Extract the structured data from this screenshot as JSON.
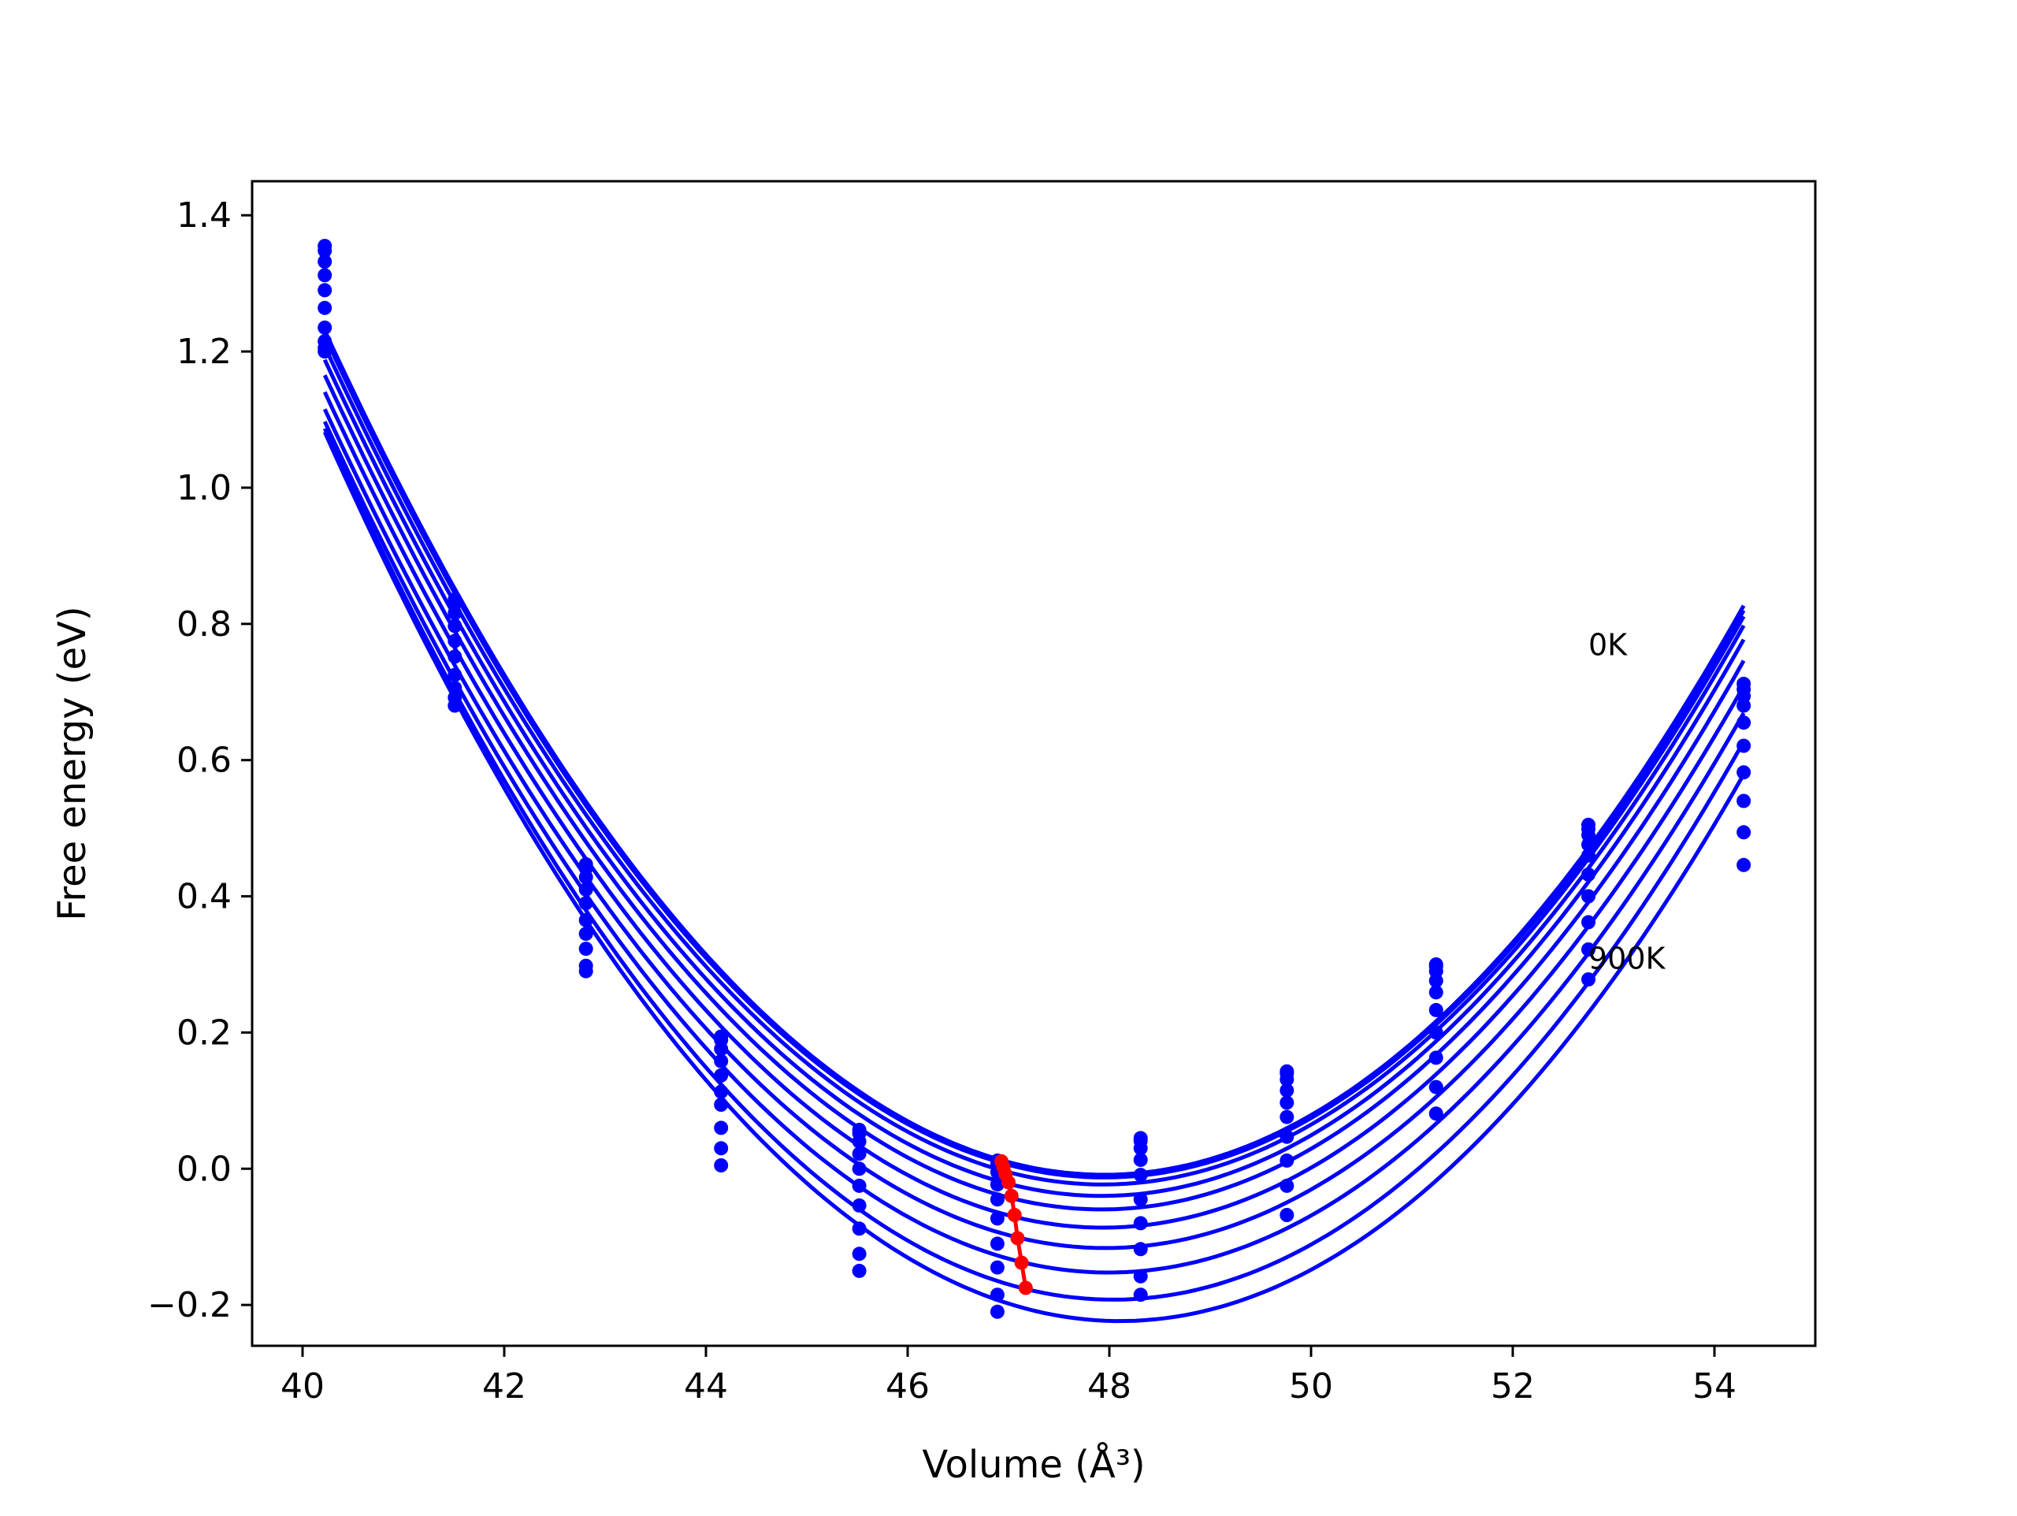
{
  "chart_data": {
    "type": "line",
    "title": "",
    "xlabel": "Volume (Å³)",
    "ylabel": "Free energy (eV)",
    "xlim": [
      39.5,
      55.0
    ],
    "ylim": [
      -0.26,
      1.45
    ],
    "x_ticks": [
      40,
      42,
      44,
      46,
      48,
      50,
      52,
      54
    ],
    "y_ticks": [
      -0.2,
      0.0,
      0.2,
      0.4,
      0.6,
      0.8,
      1.0,
      1.2,
      1.4
    ],
    "x_tick_labels": [
      "40",
      "42",
      "44",
      "46",
      "48",
      "50",
      "52",
      "54"
    ],
    "y_tick_labels": [
      "−0.2",
      "0.0",
      "0.2",
      "0.4",
      "0.6",
      "0.8",
      "1.0",
      "1.2",
      "1.4"
    ],
    "grid": false,
    "legend": "none",
    "colors": {
      "series": "#0000ff",
      "minima": "#ff0000"
    },
    "annotations": [
      {
        "text": "0K",
        "x": 52.75,
        "y": 0.77
      },
      {
        "text": "900K",
        "x": 52.75,
        "y": 0.31
      }
    ],
    "x": [
      40.22,
      41.51,
      42.81,
      44.15,
      45.52,
      46.89,
      48.31,
      49.76,
      51.24,
      52.75,
      54.29
    ],
    "series": [
      {
        "values": [
          1.355,
          0.836,
          0.447,
          0.194,
          0.057,
          0.012,
          0.045,
          0.143,
          0.3,
          0.505,
          0.712
        ]
      },
      {
        "values": [
          1.348,
          0.83,
          0.441,
          0.189,
          0.052,
          0.007,
          0.041,
          0.14,
          0.297,
          0.499,
          0.704
        ]
      },
      {
        "values": [
          1.332,
          0.816,
          0.428,
          0.176,
          0.04,
          -0.005,
          0.03,
          0.131,
          0.29,
          0.49,
          0.694
        ]
      },
      {
        "values": [
          1.312,
          0.797,
          0.41,
          0.158,
          0.022,
          -0.023,
          0.013,
          0.115,
          0.276,
          0.476,
          0.68
        ]
      },
      {
        "values": [
          1.29,
          0.775,
          0.39,
          0.137,
          0.0,
          -0.045,
          -0.009,
          0.097,
          0.259,
          0.46,
          0.655
        ]
      },
      {
        "values": [
          1.264,
          0.752,
          0.365,
          0.113,
          -0.025,
          -0.073,
          -0.045,
          0.076,
          0.233,
          0.432,
          0.621
        ]
      },
      {
        "values": [
          1.235,
          0.725,
          0.345,
          0.094,
          -0.054,
          -0.11,
          -0.08,
          0.047,
          0.2,
          0.4,
          0.582
        ]
      },
      {
        "values": [
          1.215,
          0.706,
          0.323,
          0.06,
          -0.088,
          -0.145,
          -0.118,
          0.012,
          0.163,
          0.362,
          0.54
        ]
      },
      {
        "values": [
          1.205,
          0.692,
          0.298,
          0.03,
          -0.125,
          -0.185,
          -0.158,
          -0.025,
          0.12,
          0.322,
          0.494
        ]
      },
      {
        "values": [
          1.2,
          0.68,
          0.29,
          0.005,
          -0.15,
          -0.21,
          -0.185,
          -0.068,
          0.081,
          0.278,
          0.446
        ]
      }
    ],
    "minima": {
      "x": [
        46.93,
        46.95,
        46.97,
        47.0,
        47.03,
        47.06,
        47.09,
        47.13,
        47.17
      ],
      "y": [
        0.011,
        0.002,
        -0.008,
        -0.02,
        -0.04,
        -0.068,
        -0.102,
        -0.138,
        -0.175
      ]
    }
  }
}
